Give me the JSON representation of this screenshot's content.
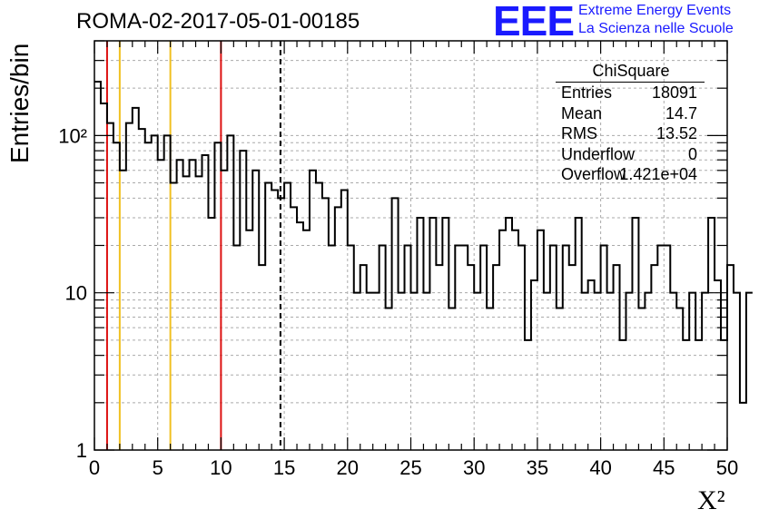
{
  "header": {
    "title": "ROMA-02-2017-05-01-00185",
    "logo_text": "EEE",
    "logo_line1": "Extreme Energy Events",
    "logo_line2": "La Scienza nelle Scuole"
  },
  "stats_box": {
    "title": "ChiSquare",
    "rows": [
      {
        "label": "Entries",
        "value": "18091"
      },
      {
        "label": "Mean",
        "value": "14.7"
      },
      {
        "label": "RMS",
        "value": "13.52"
      },
      {
        "label": "Underflow",
        "value": "0"
      },
      {
        "label": "Overflow",
        "value": "1.421e+04"
      }
    ]
  },
  "colors": {
    "histogram": "#000000",
    "red_line": "#dd1111",
    "yellow_line": "#f0c020",
    "logo_blue": "#1a1aff"
  },
  "chart_data": {
    "type": "histogram",
    "title": "ROMA-02-2017-05-01-00185",
    "xlabel": "X²",
    "ylabel": "Entries/bin",
    "xlim": [
      0,
      50
    ],
    "ylim": [
      1,
      400
    ],
    "yscale": "log",
    "grid": true,
    "x_ticks": [
      0,
      5,
      10,
      15,
      20,
      25,
      30,
      35,
      40,
      45,
      50
    ],
    "y_ticks": [
      {
        "value": 1,
        "label": "1"
      },
      {
        "value": 10,
        "label": "10"
      },
      {
        "value": 100,
        "label": "10²"
      }
    ],
    "bin_width": 0.5,
    "bin_start": 0,
    "values": [
      220,
      160,
      120,
      90,
      60,
      120,
      150,
      110,
      90,
      100,
      70,
      100,
      50,
      70,
      55,
      70,
      55,
      75,
      30,
      90,
      60,
      100,
      20,
      80,
      25,
      60,
      15,
      50,
      45,
      40,
      50,
      35,
      28,
      25,
      60,
      50,
      40,
      20,
      35,
      45,
      20,
      10,
      15,
      10,
      10,
      20,
      8,
      40,
      10,
      20,
      10,
      30,
      10,
      30,
      15,
      30,
      8,
      20,
      20,
      15,
      10,
      20,
      8,
      15,
      25,
      30,
      25,
      20,
      5,
      12,
      25,
      10,
      20,
      8,
      20,
      15,
      30,
      10,
      12,
      10,
      20,
      10,
      15,
      5,
      10,
      30,
      8,
      10,
      15,
      20,
      20,
      10,
      8,
      5,
      10,
      5,
      10,
      30,
      12,
      5,
      15,
      10,
      2,
      10
    ],
    "vertical_lines": [
      {
        "x": 1,
        "color": "red",
        "style": "solid"
      },
      {
        "x": 2,
        "color": "yellow",
        "style": "solid"
      },
      {
        "x": 6,
        "color": "yellow",
        "style": "solid"
      },
      {
        "x": 10,
        "color": "red",
        "style": "solid"
      },
      {
        "x": 14.7,
        "color": "black",
        "style": "dashed"
      }
    ]
  }
}
